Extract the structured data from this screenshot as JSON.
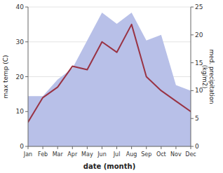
{
  "chart_data": {
    "type": "line",
    "categories": [
      "Jan",
      "Feb",
      "Mar",
      "Apr",
      "May",
      "Jun",
      "Jul",
      "Aug",
      "Sep",
      "Oct",
      "Nov",
      "Dec"
    ],
    "xlabel": "date (month)",
    "ylabel": "max temp (C)",
    "y2label": "med. precipitation\n(kg/m2)",
    "series": [
      {
        "type": "line",
        "color": "#993344",
        "values": [
          7,
          14,
          17,
          23,
          22,
          30,
          27,
          35,
          20,
          16,
          13,
          10
        ]
      },
      {
        "type": "area",
        "axis": "y2",
        "color": "#b8c0e8",
        "values": [
          9,
          9,
          12,
          14,
          19,
          24,
          22,
          24,
          19,
          20,
          11,
          10
        ]
      }
    ],
    "ylim": [
      0,
      40
    ],
    "yticks": [
      0,
      10,
      20,
      30,
      40
    ],
    "y2lim": [
      0,
      25
    ],
    "y2ticks": [
      0,
      5,
      10,
      15,
      20,
      25
    ],
    "grid": true
  }
}
